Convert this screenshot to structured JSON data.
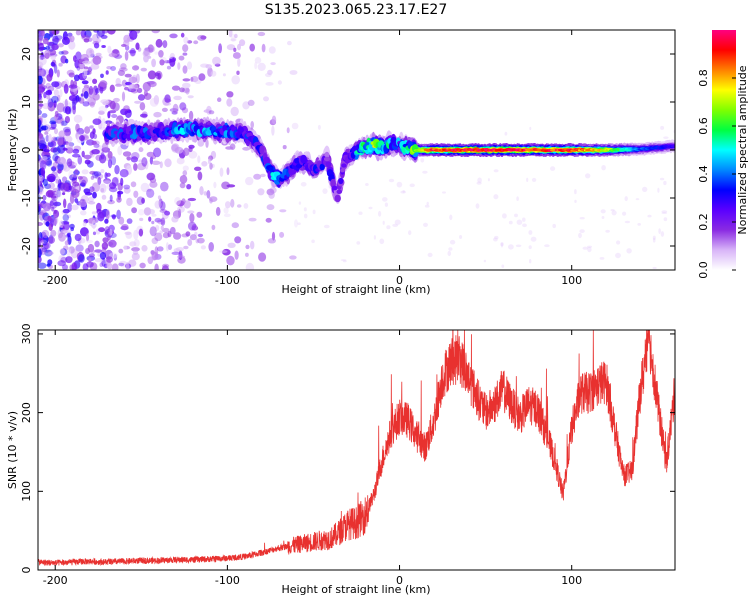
{
  "figure": {
    "title": "S135.2023.065.23.17.E27"
  },
  "chart_data": [
    {
      "type": "heatmap",
      "name": "spectrogram",
      "xlabel": "Height of straight line (km)",
      "ylabel": "Frequency (Hz)",
      "xlim": [
        -210,
        160
      ],
      "ylim": [
        -25,
        25
      ],
      "x_ticks": [
        -200,
        -100,
        0,
        100
      ],
      "x_tick_labels": [
        "-200",
        "-100",
        "0",
        "100"
      ],
      "y_ticks": [
        -20,
        -10,
        0,
        10,
        20
      ],
      "y_tick_labels": [
        "-20",
        "-10",
        "0",
        "10",
        "20"
      ],
      "colorbar": {
        "label": "Normalized spectral amplitude",
        "range": [
          0,
          1
        ],
        "ticks": [
          0,
          0.2,
          0.4,
          0.6,
          0.8
        ],
        "tick_labels": [
          "0.0",
          "0.2",
          "0.4",
          "0.6",
          "0.8"
        ],
        "colormap": [
          "#ffffff",
          "#d8b4f8",
          "#8a2be2",
          "#5a00ff",
          "#0000ff",
          "#0088ff",
          "#00ffff",
          "#00ff40",
          "#80ff00",
          "#ffff00",
          "#ff8000",
          "#ff0000",
          "#ff0080"
        ]
      },
      "ridge": {
        "x": [
          -165,
          -150,
          -140,
          -125,
          -115,
          -100,
          -90,
          -82,
          -78,
          -74,
          -70,
          -65,
          -60,
          -55,
          -50,
          -45,
          -42,
          -40,
          -36,
          -32,
          -28,
          -22,
          -15,
          -10,
          -5,
          0,
          5,
          10,
          20,
          40,
          60,
          80,
          100,
          120,
          140,
          160
        ],
        "freq": [
          3.5,
          3.5,
          3.8,
          4.5,
          4.2,
          3.8,
          3.5,
          1.0,
          -2.0,
          -5.0,
          -6.0,
          -5.0,
          -3.0,
          -2.5,
          -4.0,
          -3.0,
          -1.5,
          -5.0,
          -10.0,
          -2.0,
          -1.0,
          0.5,
          1.0,
          0.5,
          1.5,
          1.0,
          0.5,
          0.0,
          0.0,
          0.0,
          0.0,
          0.0,
          0.0,
          0.0,
          0.2,
          0.8
        ],
        "amplitude": [
          0.35,
          0.38,
          0.3,
          0.45,
          0.42,
          0.4,
          0.35,
          0.3,
          0.35,
          0.5,
          0.4,
          0.35,
          0.3,
          0.35,
          0.3,
          0.3,
          0.25,
          0.3,
          0.2,
          0.3,
          0.35,
          0.55,
          0.75,
          0.6,
          0.5,
          0.4,
          0.55,
          0.75,
          0.95,
          1.0,
          1.0,
          0.95,
          0.95,
          0.75,
          0.4,
          0.3
        ]
      }
    },
    {
      "type": "line",
      "name": "snr",
      "xlabel": "Height of straight line (km)",
      "ylabel": "SNR (10 * v/v)",
      "xlim": [
        -210,
        160
      ],
      "ylim": [
        0,
        305
      ],
      "x_ticks": [
        -200,
        -100,
        0,
        100
      ],
      "x_tick_labels": [
        "-200",
        "-100",
        "0",
        "100"
      ],
      "y_ticks": [
        0,
        100,
        200,
        300
      ],
      "y_tick_labels": [
        "0",
        "100",
        "200",
        "300"
      ],
      "line_color": "#e8312f",
      "x": [
        -210,
        -200,
        -190,
        -180,
        -170,
        -160,
        -150,
        -140,
        -130,
        -120,
        -110,
        -100,
        -90,
        -80,
        -70,
        -60,
        -50,
        -40,
        -35,
        -30,
        -25,
        -20,
        -15,
        -10,
        -5,
        0,
        5,
        10,
        15,
        20,
        25,
        30,
        35,
        40,
        45,
        50,
        55,
        60,
        65,
        70,
        75,
        80,
        85,
        90,
        95,
        100,
        105,
        110,
        115,
        120,
        125,
        130,
        135,
        140,
        145,
        150,
        155,
        160
      ],
      "y": [
        10,
        9,
        10,
        11,
        10,
        11,
        12,
        12,
        13,
        13,
        14,
        15,
        17,
        22,
        28,
        32,
        36,
        40,
        48,
        58,
        60,
        70,
        95,
        140,
        175,
        195,
        190,
        170,
        155,
        190,
        245,
        265,
        268,
        245,
        220,
        200,
        210,
        230,
        210,
        195,
        210,
        205,
        175,
        140,
        95,
        180,
        225,
        225,
        235,
        240,
        180,
        120,
        125,
        230,
        295,
        210,
        135,
        230
      ]
    }
  ]
}
